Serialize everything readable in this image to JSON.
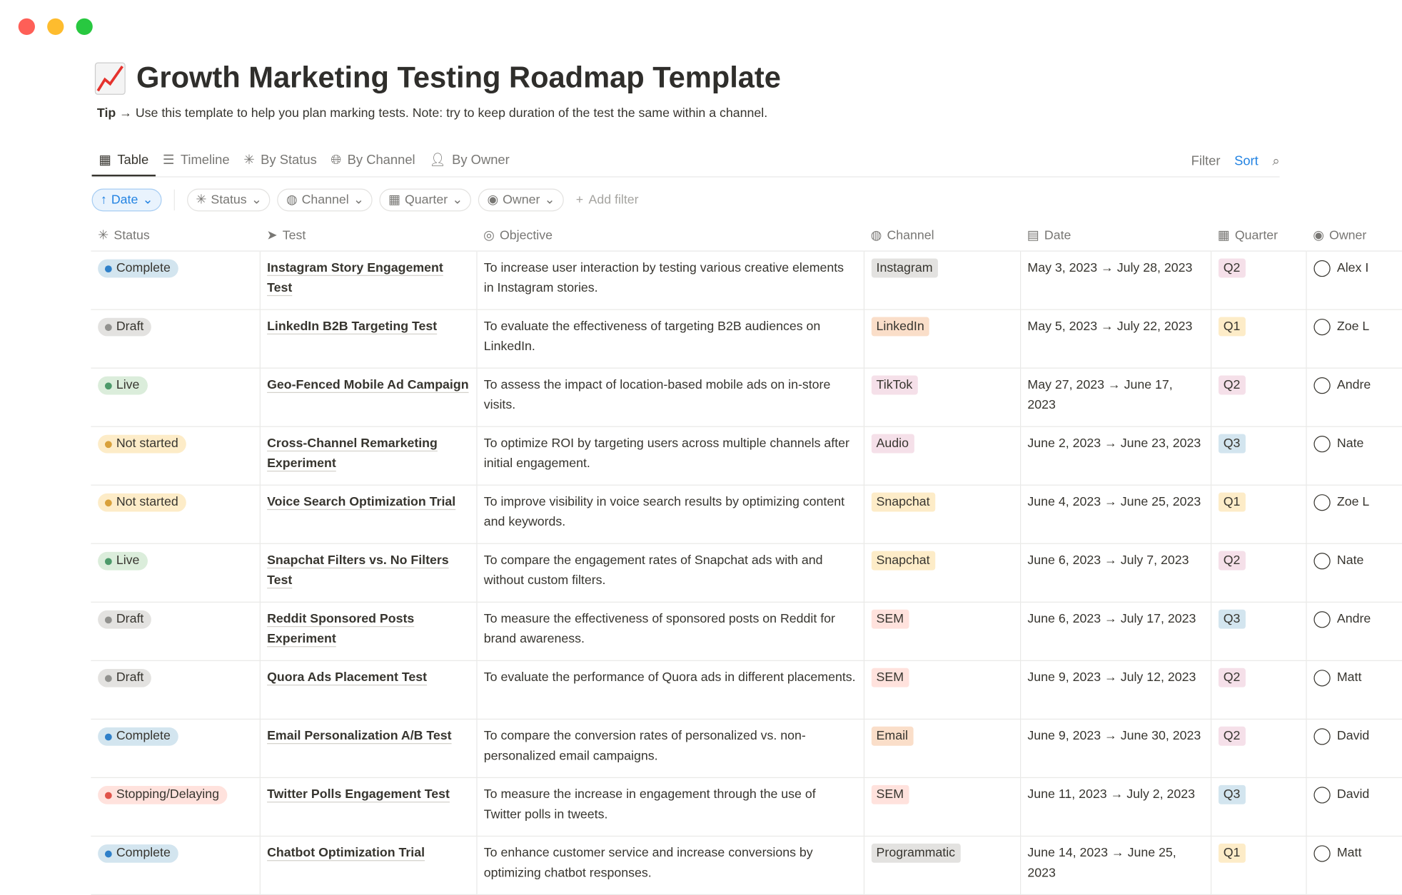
{
  "window": {
    "controls": [
      "close",
      "minimize",
      "maximize"
    ]
  },
  "page": {
    "icon": "chart-increasing-icon",
    "title": "Growth Marketing Testing Roadmap Template",
    "tip_label": "Tip",
    "tip_arrow": "→",
    "tip_text": "Use this template to help you plan marking tests. Note: try to keep duration of the test the same within a channel."
  },
  "tabs": [
    {
      "label": "Table",
      "icon": "table-grid-icon",
      "active": true
    },
    {
      "label": "Timeline",
      "icon": "timeline-icon"
    },
    {
      "label": "By Status",
      "icon": "status-sparkle-icon"
    },
    {
      "label": "By Channel",
      "icon": "globe-icon"
    },
    {
      "label": "By Owner",
      "icon": "person-icon"
    }
  ],
  "toolbar": {
    "filter": "Filter",
    "sort": "Sort",
    "search_icon": "search-icon"
  },
  "filters": {
    "sort_chip": "Date",
    "chips": [
      "Status",
      "Channel",
      "Quarter",
      "Owner"
    ],
    "add_filter": "Add filter"
  },
  "columns": [
    "Status",
    "Test",
    "Objective",
    "Channel",
    "Date",
    "Quarter",
    "Owner"
  ],
  "colors": {
    "status": {
      "Complete": [
        "#d3e5ef",
        "#2f80c9"
      ],
      "Draft": [
        "#e3e2e0",
        "#91918e"
      ],
      "Live": [
        "#dbeddb",
        "#4d9a6a"
      ],
      "Not started": [
        "#fdecc8",
        "#d9a13b"
      ],
      "Stopping/Delaying": [
        "#ffe2dd",
        "#e0534a"
      ]
    },
    "channel": {
      "Instagram": "#e3e2e0",
      "LinkedIn": "#fadec9",
      "TikTok": "#f5e0e9",
      "Audio": "#f5e0e9",
      "Snapchat": "#fdecc8",
      "SEM": "#ffe2dd",
      "Email": "#fadec9",
      "Programmatic": "#e3e2e0"
    },
    "quarter": {
      "Q1": "#fdecc8",
      "Q2": "#f5e0e9",
      "Q3": "#d3e5ef"
    }
  },
  "rows": [
    {
      "status": "Complete",
      "test": "Instagram Story Engagement Test",
      "objective": "To increase user interaction by testing various creative elements in Instagram stories.",
      "channel": "Instagram",
      "date": "May 3, 2023 → July 28, 2023",
      "quarter": "Q2",
      "owner": "Alex I"
    },
    {
      "status": "Draft",
      "test": "LinkedIn B2B Targeting Test",
      "objective": "To evaluate the effectiveness of targeting B2B audiences on LinkedIn.",
      "channel": "LinkedIn",
      "date": "May 5, 2023 → July 22, 2023",
      "quarter": "Q1",
      "owner": "Zoe L"
    },
    {
      "status": "Live",
      "test": "Geo-Fenced Mobile Ad Campaign",
      "objective": "To assess the impact of location-based mobile ads on in-store visits.",
      "channel": "TikTok",
      "date": "May 27, 2023 → June 17, 2023",
      "quarter": "Q2",
      "owner": "Andre"
    },
    {
      "status": "Not started",
      "test": "Cross-Channel Remarketing Experiment",
      "objective": "To optimize ROI by targeting users across multiple channels after initial engagement.",
      "channel": "Audio",
      "date": "June 2, 2023 → June 23, 2023",
      "quarter": "Q3",
      "owner": "Nate"
    },
    {
      "status": "Not started",
      "test": "Voice Search Optimization Trial",
      "objective": "To improve visibility in voice search results by optimizing content and keywords.",
      "channel": "Snapchat",
      "date": "June 4, 2023 → June 25, 2023",
      "quarter": "Q1",
      "owner": "Zoe L"
    },
    {
      "status": "Live",
      "test": "Snapchat Filters vs. No Filters Test",
      "objective": "To compare the engagement rates of Snapchat ads with and without custom filters.",
      "channel": "Snapchat",
      "date": "June 6, 2023 → July 7, 2023",
      "quarter": "Q2",
      "owner": "Nate"
    },
    {
      "status": "Draft",
      "test": "Reddit Sponsored Posts Experiment",
      "objective": "To measure the effectiveness of sponsored posts on Reddit for brand awareness.",
      "channel": "SEM",
      "date": "June 6, 2023 → July 17, 2023",
      "quarter": "Q3",
      "owner": "Andre"
    },
    {
      "status": "Draft",
      "test": "Quora Ads Placement Test",
      "objective": "To evaluate the performance of Quora ads in different placements.",
      "channel": "SEM",
      "date": "June 9, 2023 → July 12, 2023",
      "quarter": "Q2",
      "owner": "Matt"
    },
    {
      "status": "Complete",
      "test": "Email Personalization A/B Test",
      "objective": "To compare the conversion rates of personalized vs. non-personalized email campaigns.",
      "channel": "Email",
      "date": "June 9, 2023 → June 30, 2023",
      "quarter": "Q2",
      "owner": "David"
    },
    {
      "status": "Stopping/Delaying",
      "test": "Twitter Polls Engagement Test",
      "objective": "To measure the increase in engagement through the use of Twitter polls in tweets.",
      "channel": "SEM",
      "date": "June 11, 2023 → July 2, 2023",
      "quarter": "Q3",
      "owner": "David"
    },
    {
      "status": "Complete",
      "test": "Chatbot Optimization Trial",
      "objective": "To enhance customer service and increase conversions by optimizing chatbot responses.",
      "channel": "Programmatic",
      "date": "June 14, 2023 → June 25, 2023",
      "quarter": "Q1",
      "owner": "Matt"
    }
  ]
}
